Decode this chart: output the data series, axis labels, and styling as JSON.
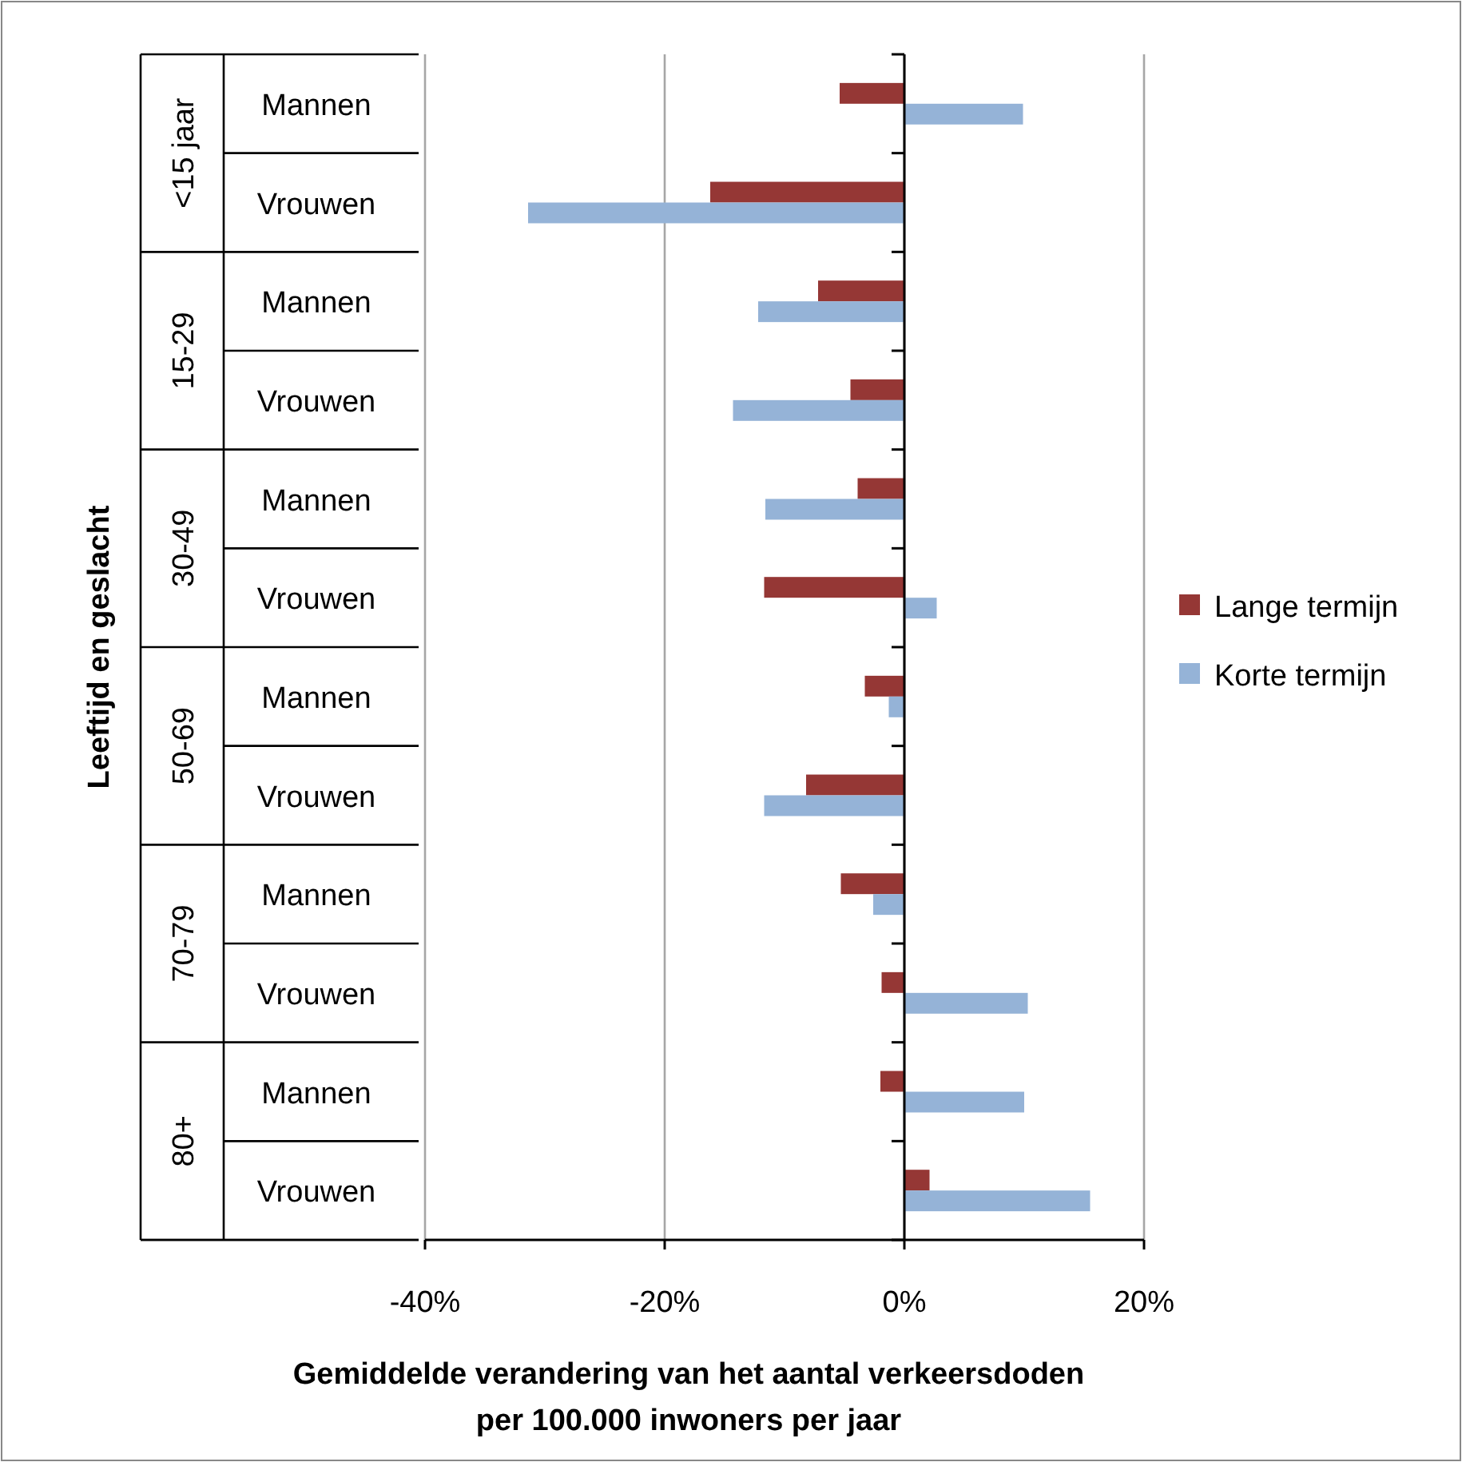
{
  "chart_data": {
    "type": "bar",
    "orientation": "horizontal",
    "xlabel": "Gemiddelde verandering van het aantal verkeersdoden\nper 100.000 inwoners per jaar",
    "ylabel": "Leeftijd en geslacht",
    "categories": [
      "Mannen",
      "Vrouwen",
      "Mannen",
      "Vrouwen",
      "Mannen",
      "Vrouwen",
      "Mannen",
      "Vrouwen",
      "Mannen",
      "Vrouwen",
      "Mannen",
      "Vrouwen"
    ],
    "annotations": [
      "<15 jaar",
      "15-29",
      "30-49",
      "50-69",
      "70-79",
      "80+"
    ],
    "series": [
      {
        "name": "Lange termijn",
        "color": "#953735",
        "values": [
          -5.4,
          -16.2,
          -7.2,
          -4.5,
          -3.9,
          -11.7,
          -3.3,
          -8.2,
          -5.3,
          -1.9,
          -2.0,
          2.1
        ]
      },
      {
        "name": "Korte termijn",
        "color": "#95b3d7",
        "values": [
          9.9,
          -31.4,
          -12.2,
          -14.3,
          -11.6,
          2.7,
          -1.3,
          -11.7,
          -2.6,
          10.3,
          10.0,
          15.5
        ]
      }
    ],
    "xlim": [
      -40,
      20
    ],
    "xticks": [
      {
        "value": -40,
        "label": "-40%"
      },
      {
        "value": -20,
        "label": "-20%"
      },
      {
        "value": 0,
        "label": "0%"
      },
      {
        "value": 20,
        "label": "20%"
      }
    ],
    "grid": "x",
    "legend": "right"
  }
}
